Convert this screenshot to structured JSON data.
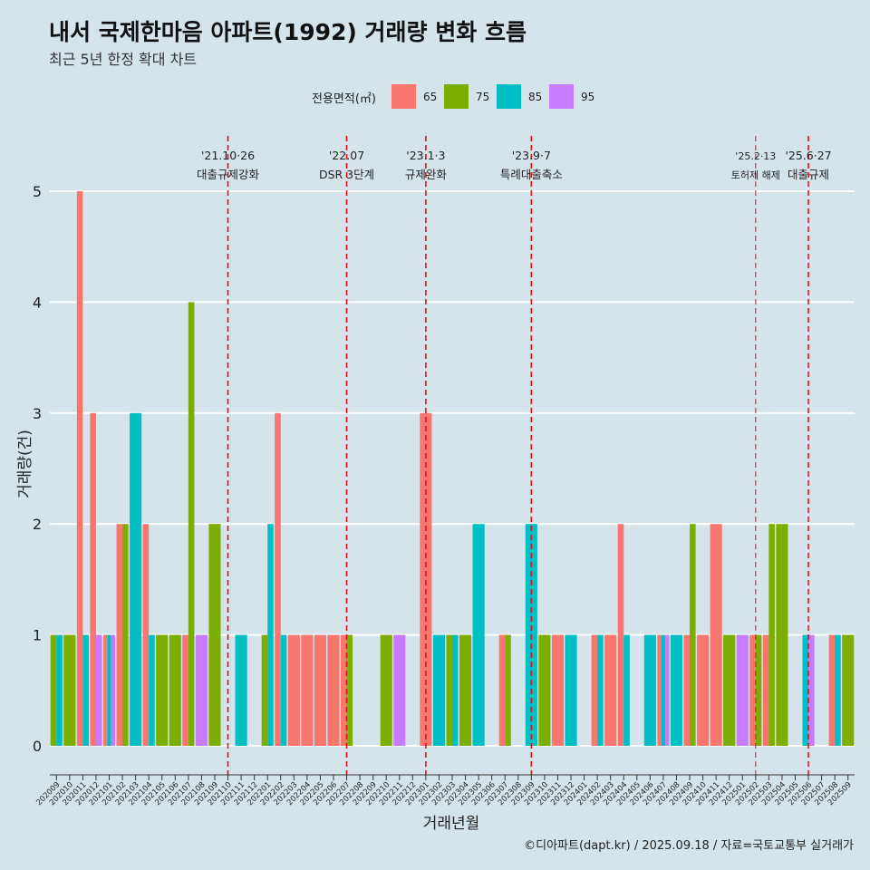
{
  "header": {
    "title": "내서 국제한마음 아파트(1992) 거래량 변화 흐름",
    "subtitle": "최근 5년 한정 확대 차트"
  },
  "legend": {
    "title": "전용면적(㎡)",
    "items": [
      {
        "label": "65",
        "color": "#f8766d"
      },
      {
        "label": "75",
        "color": "#7cae00"
      },
      {
        "label": "85",
        "color": "#00bfc4"
      },
      {
        "label": "95",
        "color": "#c77cff"
      }
    ]
  },
  "footer": {
    "credit": "©디아파트(dapt.kr) / 2025.09.18 / 자료=국토교통부 실거래가"
  },
  "chart_data": {
    "type": "bar",
    "xlabel": "거래년월",
    "ylabel": "거래량(건)",
    "ylim": [
      0,
      5
    ],
    "yticks": [
      0,
      1,
      2,
      3,
      4,
      5
    ],
    "grid": "horizontal",
    "legend_position": "top",
    "categories": [
      "202009",
      "202010",
      "202011",
      "202012",
      "202101",
      "202102",
      "202103",
      "202104",
      "202105",
      "202106",
      "202107",
      "202108",
      "202109",
      "202110",
      "202111",
      "202112",
      "202201",
      "202202",
      "202203",
      "202204",
      "202205",
      "202206",
      "202207",
      "202208",
      "202209",
      "202210",
      "202211",
      "202212",
      "202301",
      "202302",
      "202303",
      "202304",
      "202305",
      "202306",
      "202307",
      "202308",
      "202309",
      "202310",
      "202311",
      "202312",
      "202401",
      "202402",
      "202403",
      "202404",
      "202405",
      "202406",
      "202407",
      "202408",
      "202409",
      "202410",
      "202411",
      "202412",
      "202501",
      "202502",
      "202503",
      "202504",
      "202505",
      "202506",
      "202507",
      "202508",
      "202509"
    ],
    "series": [
      {
        "name": "65",
        "color": "#f8766d",
        "values": [
          0,
          0,
          5,
          3,
          1,
          2,
          0,
          2,
          0,
          0,
          1,
          0,
          0,
          0,
          0,
          0,
          0,
          3,
          1,
          1,
          1,
          1,
          1,
          0,
          0,
          0,
          0,
          0,
          3,
          0,
          0,
          0,
          0,
          0,
          1,
          0,
          0,
          0,
          1,
          0,
          0,
          1,
          1,
          2,
          0,
          0,
          1,
          0,
          1,
          1,
          2,
          0,
          0,
          1,
          1,
          0,
          0,
          0,
          0,
          1,
          0
        ]
      },
      {
        "name": "75",
        "color": "#7cae00",
        "values": [
          1,
          1,
          0,
          0,
          0,
          2,
          0,
          0,
          1,
          1,
          4,
          0,
          2,
          0,
          0,
          0,
          1,
          0,
          0,
          0,
          0,
          0,
          1,
          0,
          0,
          1,
          0,
          0,
          0,
          0,
          1,
          1,
          0,
          0,
          1,
          0,
          0,
          1,
          0,
          0,
          0,
          0,
          0,
          0,
          0,
          0,
          0,
          0,
          2,
          0,
          0,
          1,
          0,
          1,
          2,
          2,
          0,
          0,
          0,
          0,
          1
        ]
      },
      {
        "name": "85",
        "color": "#00bfc4",
        "values": [
          1,
          0,
          1,
          0,
          1,
          0,
          3,
          1,
          0,
          0,
          0,
          0,
          0,
          0,
          1,
          0,
          2,
          1,
          0,
          0,
          0,
          0,
          0,
          0,
          0,
          0,
          0,
          0,
          0,
          1,
          1,
          0,
          2,
          0,
          0,
          0,
          2,
          0,
          0,
          1,
          0,
          1,
          0,
          1,
          0,
          1,
          1,
          1,
          0,
          0,
          0,
          0,
          0,
          0,
          0,
          0,
          0,
          1,
          0,
          1,
          0
        ]
      },
      {
        "name": "95",
        "color": "#c77cff",
        "values": [
          0,
          0,
          0,
          1,
          1,
          0,
          0,
          0,
          0,
          0,
          0,
          1,
          0,
          0,
          0,
          0,
          0,
          0,
          0,
          0,
          0,
          0,
          0,
          0,
          0,
          0,
          1,
          0,
          0,
          0,
          0,
          0,
          0,
          0,
          0,
          0,
          0,
          0,
          0,
          0,
          0,
          0,
          0,
          0,
          0,
          0,
          1,
          0,
          0,
          0,
          0,
          0,
          1,
          0,
          0,
          0,
          0,
          1,
          0,
          0,
          0
        ]
      }
    ],
    "annotations": [
      {
        "month": "202110",
        "date": "'21.10·26",
        "label": "대출규제강화"
      },
      {
        "month": "202207",
        "date": "'22.07",
        "label": "DSR 3단계"
      },
      {
        "month": "202301",
        "date": "'23.1·3",
        "label": "규제완화"
      },
      {
        "month": "202309",
        "date": "'23.9·7",
        "label": "특례대출축소"
      },
      {
        "month": "202502",
        "date": "'25.2·13",
        "label": "토허제 해제"
      },
      {
        "month": "202506",
        "date": "'25.6·27",
        "label": "대출규제"
      }
    ]
  }
}
